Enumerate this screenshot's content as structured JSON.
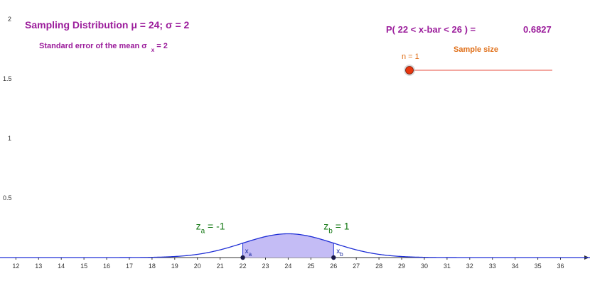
{
  "header": {
    "title": "Sampling Distribution  μ = 24; σ = 2",
    "se_prefix": "Standard error of the mean σ",
    "se_sub": "x",
    "se_suffix": " = 2"
  },
  "probability": {
    "label": "P( 22 < x-bar < 26 ) =",
    "value": "0.6827"
  },
  "slider": {
    "n_label": "n = 1",
    "title": "Sample size",
    "min": 1,
    "max": 30,
    "value": 1,
    "colors": {
      "knob": "#e8360e",
      "track": "#f3a7a0"
    }
  },
  "z_labels": {
    "za_main": "z",
    "za_sub": "a",
    "za_rest": " = -1",
    "zb_main": "z",
    "zb_sub": "b",
    "zb_rest": " = 1"
  },
  "x_labels": {
    "xa_main": "x",
    "xa_sub": "a",
    "xb_main": "x",
    "xb_sub": "b"
  },
  "axes": {
    "y_ticks": [
      "0.5",
      "1",
      "1.5",
      "2"
    ],
    "x_ticks": [
      "12",
      "13",
      "14",
      "15",
      "16",
      "17",
      "18",
      "19",
      "20",
      "21",
      "22",
      "23",
      "24",
      "25",
      "26",
      "27",
      "28",
      "29",
      "30",
      "31",
      "32",
      "33",
      "34",
      "35",
      "36"
    ]
  },
  "chart_data": {
    "type": "area",
    "mu": 24,
    "sigma": 2,
    "n": 1,
    "a": 22,
    "b": 26,
    "xlim": [
      11.3,
      37.3
    ],
    "ylim": [
      -0.05,
      2.05
    ],
    "colors": {
      "curve": "#1f2fd6",
      "fill": "#c4bcf5",
      "points": "#1a1a4a"
    }
  }
}
